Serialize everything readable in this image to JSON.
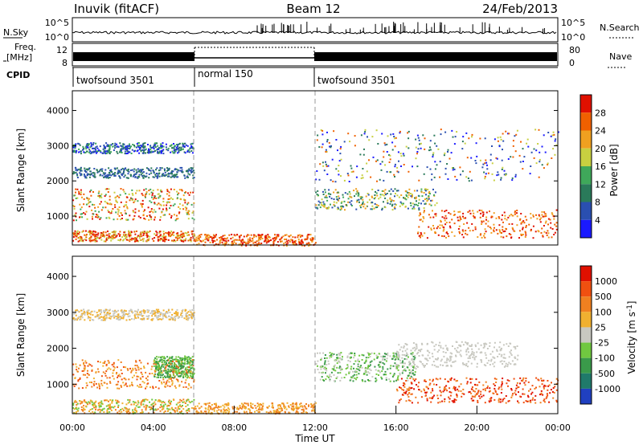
{
  "header": {
    "station": "Inuvik (fitACF)",
    "beam": "Beam 12",
    "date": "24/Feb/2013"
  },
  "chart_data": [
    {
      "type": "line",
      "panel": "noise",
      "left_label": "N.Sky",
      "right_label": "N.Search",
      "y_left_ticks": [
        "10^5",
        "10^0"
      ],
      "y_right_ticks": [
        "10^5",
        "10^0"
      ],
      "ylim": [
        0,
        5
      ],
      "y_scale": "log10"
    },
    {
      "type": "line",
      "panel": "frequency",
      "left_label": "Freq. [MHz]",
      "right_label": "Nave",
      "y_left_ticks": [
        "12",
        "8"
      ],
      "y_right_ticks": [
        "80",
        "0"
      ],
      "ylim_left": [
        8,
        12
      ],
      "ylim_right": [
        0,
        80
      ]
    },
    {
      "type": "table",
      "panel": "cpid",
      "label": "CPID",
      "segments": [
        {
          "name": "twofsound 3501",
          "start_hour": 0,
          "end_hour": 6
        },
        {
          "name": "normal 150",
          "start_hour": 6,
          "end_hour": 12
        },
        {
          "name": "twofsound 3501",
          "start_hour": 12,
          "end_hour": 24
        }
      ]
    },
    {
      "type": "heatmap",
      "panel": "power",
      "ylabel": "Slant Range [km]",
      "colorbar_label": "Power [dB]",
      "ylim": [
        180,
        4560
      ],
      "y_ticks": [
        1000,
        2000,
        3000,
        4000
      ],
      "colorbar_ticks": [
        4,
        8,
        12,
        16,
        20,
        24,
        28
      ],
      "colors": [
        "#1a1aff",
        "#2a4fb0",
        "#2a7a5a",
        "#3fa85a",
        "#c8d040",
        "#f0a020",
        "#f06000",
        "#e01000"
      ]
    },
    {
      "type": "heatmap",
      "panel": "velocity",
      "ylabel": "Slant Range [km]",
      "colorbar_label": "Velocity [m s-1]",
      "ylim": [
        180,
        4560
      ],
      "y_ticks": [
        1000,
        2000,
        3000,
        4000
      ],
      "colorbar_ticks": [
        "1000",
        "500",
        "100",
        "25",
        "-25",
        "-100",
        "-500",
        "-1000"
      ],
      "colors": [
        "#2040c0",
        "#207a6a",
        "#3a9a4a",
        "#70c840",
        "#c8c8c0",
        "#f0b030",
        "#f08020",
        "#f05010",
        "#e01000"
      ]
    }
  ],
  "x_axis": {
    "label": "Time UT",
    "ticks": [
      "00:00",
      "04:00",
      "08:00",
      "12:00",
      "16:00",
      "20:00",
      "00:00"
    ]
  }
}
